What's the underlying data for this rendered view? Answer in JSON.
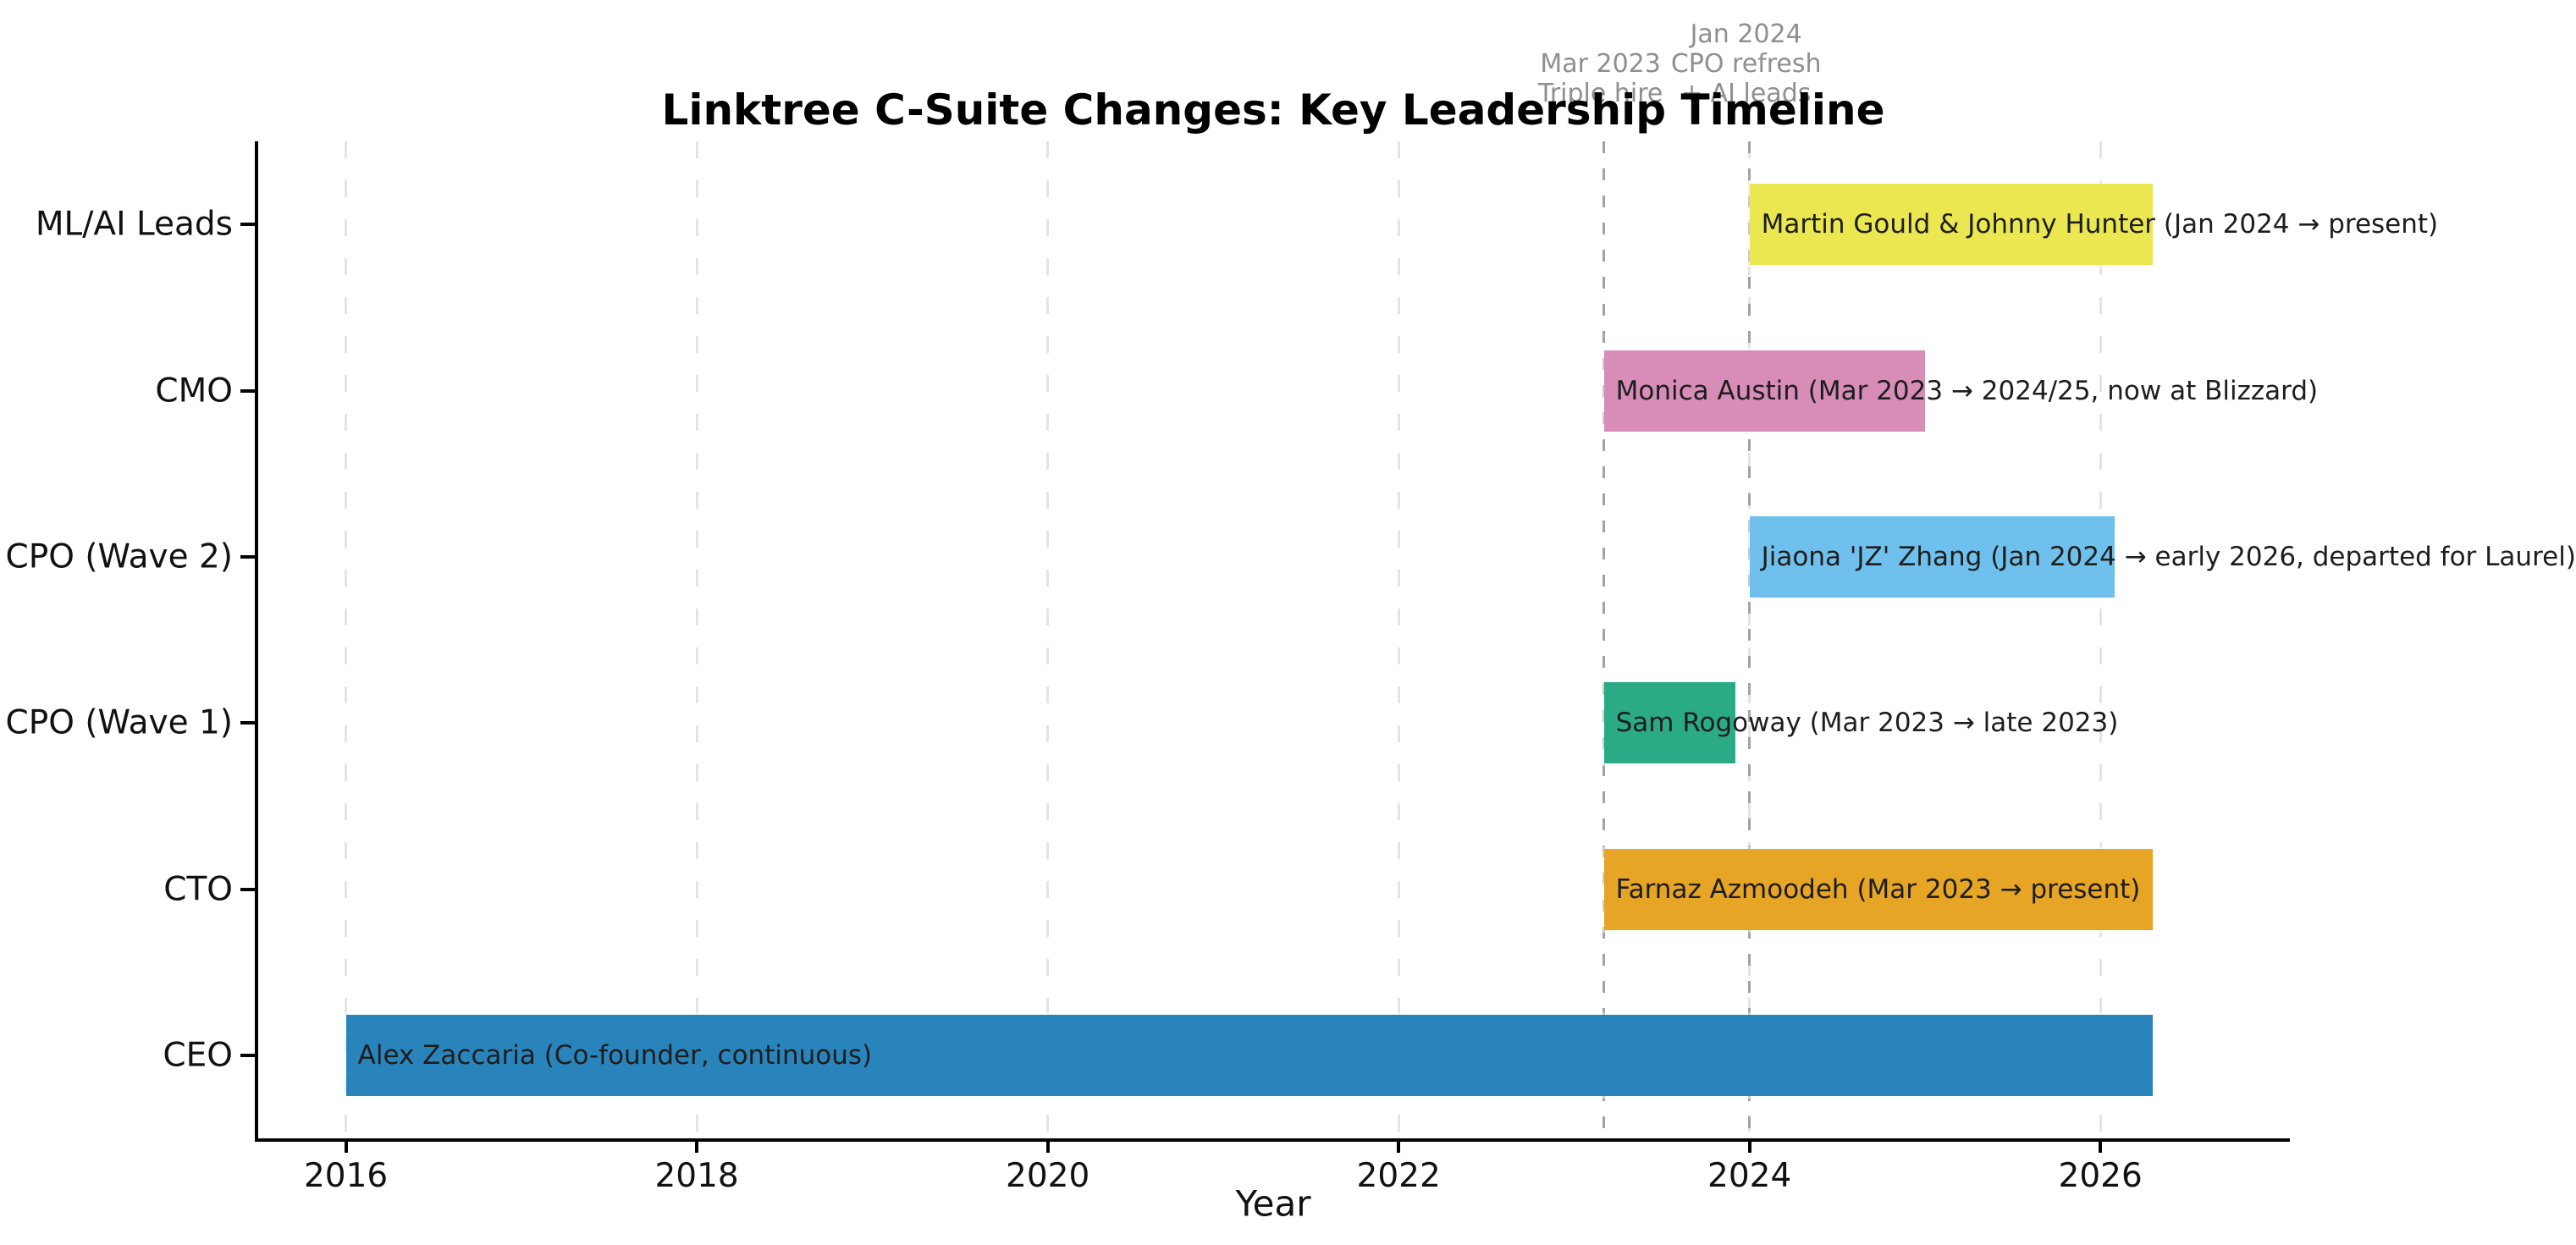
{
  "chart_data": {
    "type": "bar",
    "subtype": "gantt-timeline",
    "title": "Linktree C-Suite Changes: Key Leadership Timeline",
    "xlabel": "Year",
    "ylabel": "",
    "xlim": [
      2015.5,
      2027.08
    ],
    "x_ticks": [
      2016,
      2018,
      2020,
      2022,
      2024,
      2026
    ],
    "grid": "vertical-dashed",
    "legend": "none",
    "rows_top_to_bottom": [
      {
        "role": "ML/AI Leads",
        "label": "Martin Gould & Johnny Hunter (Jan 2024 → present)",
        "start": 2024.0,
        "end": 2026.3,
        "color": "#ebe751"
      },
      {
        "role": "CMO",
        "label": "Monica Austin (Mar 2023 → 2024/25, now at Blizzard)",
        "start": 2023.17,
        "end": 2025.0,
        "color": "#d78db8"
      },
      {
        "role": "CPO (Wave 2)",
        "label": "Jiaona 'JZ' Zhang (Jan 2024 → early 2026, departed for Laurel)",
        "start": 2024.0,
        "end": 2026.08,
        "color": "#6fc0ec"
      },
      {
        "role": "CPO (Wave 1)",
        "label": "Sam Rogoway (Mar 2023 → late 2023)",
        "start": 2023.17,
        "end": 2023.92,
        "color": "#2aab86"
      },
      {
        "role": "CTO",
        "label": "Farnaz Azmoodeh (Mar 2023 → present)",
        "start": 2023.17,
        "end": 2026.3,
        "color": "#e6a524"
      },
      {
        "role": "CEO",
        "label": "Alex Zaccaria (Co-founder, continuous)",
        "start": 2016.0,
        "end": 2026.3,
        "color": "#2a84bc"
      }
    ],
    "events": [
      {
        "x": 2023.17,
        "lines": [
          "Mar 2023",
          "Triple hire"
        ]
      },
      {
        "x": 2024.0,
        "lines": [
          "Jan 2024",
          "CPO refresh",
          "+ AI leads"
        ]
      }
    ],
    "annotation_color": "#8f8f8f",
    "event_line_color": "#a3a3a3",
    "gridline_color": "#e4e4e4"
  }
}
